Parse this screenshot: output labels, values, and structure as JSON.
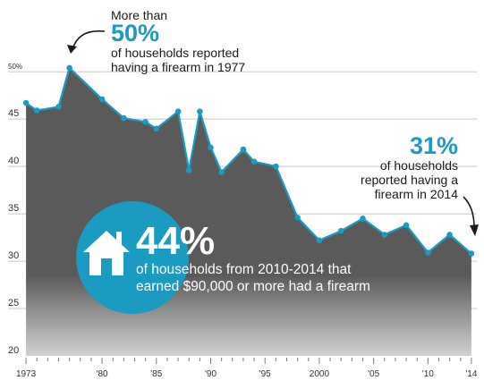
{
  "chart_data": {
    "type": "area",
    "title": "",
    "xlabel": "",
    "ylabel": "",
    "ylim": [
      20,
      52
    ],
    "xlim": [
      1972.5,
      2014.5
    ],
    "grid": true,
    "y_ticks": [
      {
        "value": 20,
        "label": "20"
      },
      {
        "value": 25,
        "label": "25"
      },
      {
        "value": 30,
        "label": "30"
      },
      {
        "value": 35,
        "label": "35"
      },
      {
        "value": 40,
        "label": "40"
      },
      {
        "value": 45,
        "label": "45"
      },
      {
        "value": 50,
        "label": "50%"
      }
    ],
    "x_ticks": [
      {
        "value": 1973,
        "label": "1973"
      },
      {
        "value": 1980,
        "label": "'80"
      },
      {
        "value": 1985,
        "label": "'85"
      },
      {
        "value": 1990,
        "label": "'90"
      },
      {
        "value": 1995,
        "label": "'95"
      },
      {
        "value": 2000,
        "label": "2000"
      },
      {
        "value": 2005,
        "label": "'05"
      },
      {
        "value": 2010,
        "label": "'10"
      },
      {
        "value": 2014,
        "label": "'14"
      }
    ],
    "series": [
      {
        "name": "",
        "points": [
          {
            "x": 1973,
            "y": 46.7
          },
          {
            "x": 1974,
            "y": 45.9
          },
          {
            "x": 1976,
            "y": 46.3
          },
          {
            "x": 1977,
            "y": 50.4
          },
          {
            "x": 1980,
            "y": 47.1
          },
          {
            "x": 1982,
            "y": 45.1
          },
          {
            "x": 1984,
            "y": 44.7
          },
          {
            "x": 1985,
            "y": 44.0
          },
          {
            "x": 1987,
            "y": 45.8
          },
          {
            "x": 1988,
            "y": 39.6
          },
          {
            "x": 1989,
            "y": 45.8
          },
          {
            "x": 1990,
            "y": 42.0
          },
          {
            "x": 1991,
            "y": 39.4
          },
          {
            "x": 1993,
            "y": 41.8
          },
          {
            "x": 1994,
            "y": 40.5
          },
          {
            "x": 1996,
            "y": 40.0
          },
          {
            "x": 1998,
            "y": 34.6
          },
          {
            "x": 2000,
            "y": 32.2
          },
          {
            "x": 2002,
            "y": 33.2
          },
          {
            "x": 2004,
            "y": 34.5
          },
          {
            "x": 2006,
            "y": 32.8
          },
          {
            "x": 2008,
            "y": 33.8
          },
          {
            "x": 2010,
            "y": 30.9
          },
          {
            "x": 2012,
            "y": 32.8
          },
          {
            "x": 2014,
            "y": 30.8
          }
        ]
      }
    ],
    "colors": {
      "area_top": "#5a5a5a",
      "area_bottom": "#d2d2d2",
      "line": "#1a9bc1",
      "accent": "#1a9bc1",
      "circle": "#1a9bc1"
    },
    "annotations": {
      "peak": {
        "lead": "More than",
        "value": "50%",
        "line1": "of households reported",
        "line2": "having a firearm in 1977"
      },
      "latest": {
        "value": "31%",
        "line1": "of households",
        "line2": "reported having a",
        "line3": "firearm in 2014"
      },
      "stat": {
        "icon": "house-icon",
        "value": "44%",
        "line1": "of households from 2010-2014 that",
        "line2": "earned $90,000 or more had a firearm"
      }
    }
  }
}
